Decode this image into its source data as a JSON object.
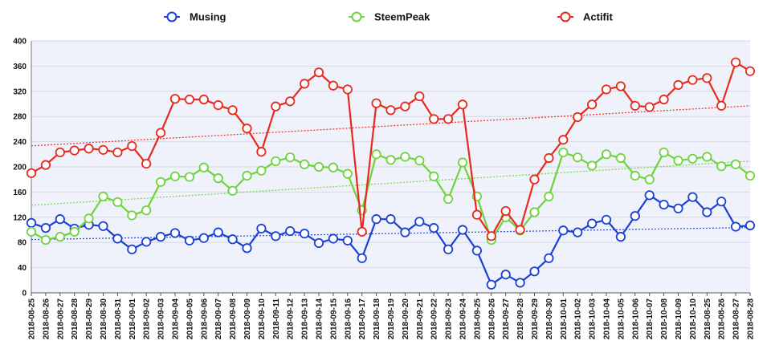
{
  "chart_data": {
    "type": "line",
    "ylim": [
      0,
      400
    ],
    "yticks": [
      "0",
      "40",
      "80",
      "120",
      "160",
      "200",
      "240",
      "280",
      "320",
      "360",
      "400"
    ],
    "grid": "horizontal",
    "trendlines": "dotted linear",
    "legend_position": "top",
    "categories": [
      "2018-08-25",
      "2018-08-26",
      "2018-08-27",
      "2018-08-28",
      "2018-08-29",
      "2018-08-30",
      "2018-08-31",
      "2018-09-01",
      "2018-09-02",
      "2018-09-03",
      "2018-09-04",
      "2018-09-05",
      "2018-09-06",
      "2018-09-07",
      "2018-09-08",
      "2018-09-09",
      "2018-09-10",
      "2018-09-11",
      "2018-09-12",
      "2018-09-13",
      "2018-09-14",
      "2018-09-15",
      "2018-09-16",
      "2018-09-17",
      "2018-09-18",
      "2018-09-19",
      "2018-09-20",
      "2018-09-21",
      "2018-09-22",
      "2018-09-23",
      "2018-09-24",
      "2018-09-25",
      "2018-09-26",
      "2018-09-27",
      "2018-09-28",
      "2018-09-29",
      "2018-09-30",
      "2018-10-01",
      "2018-10-02",
      "2018-10-03",
      "2018-10-04",
      "2018-10-05",
      "2018-10-06",
      "2018-10-07",
      "2018-10-08",
      "2018-10-09",
      "2018-10-10",
      "2018-08-25",
      "2018-08-26",
      "2018-08-27",
      "2018-08-28"
    ],
    "series": [
      {
        "name": "Musing",
        "color": "#1a3fd6",
        "values": [
          111,
          103,
          117,
          102,
          108,
          106,
          86,
          69,
          81,
          89,
          95,
          83,
          87,
          96,
          85,
          71,
          102,
          90,
          98,
          94,
          79,
          86,
          83,
          55,
          117,
          117,
          96,
          113,
          103,
          69,
          100,
          67,
          13,
          29,
          16,
          34,
          55,
          99,
          96,
          110,
          116,
          89,
          122,
          155,
          140,
          134,
          152,
          128,
          145,
          105,
          107
        ]
      },
      {
        "name": "SteemPeak",
        "color": "#6ed33c",
        "values": [
          97,
          84,
          89,
          97,
          118,
          153,
          144,
          123,
          131,
          176,
          185,
          184,
          199,
          182,
          162,
          186,
          194,
          209,
          215,
          204,
          200,
          199,
          189,
          131,
          220,
          211,
          216,
          210,
          185,
          149,
          207,
          153,
          84,
          120,
          99,
          128,
          153,
          223,
          215,
          202,
          220,
          214,
          186,
          180,
          223,
          210,
          213,
          216,
          201,
          204,
          186
        ]
      },
      {
        "name": "Actifit",
        "color": "#e8291c",
        "values": [
          190,
          203,
          223,
          226,
          229,
          227,
          223,
          233,
          205,
          254,
          308,
          307,
          307,
          298,
          290,
          261,
          224,
          296,
          304,
          332,
          350,
          329,
          323,
          97,
          301,
          290,
          296,
          312,
          276,
          276,
          299,
          124,
          90,
          130,
          100,
          180,
          214,
          243,
          279,
          299,
          323,
          328,
          297,
          295,
          307,
          330,
          338,
          341,
          297,
          366,
          352
        ]
      }
    ]
  }
}
